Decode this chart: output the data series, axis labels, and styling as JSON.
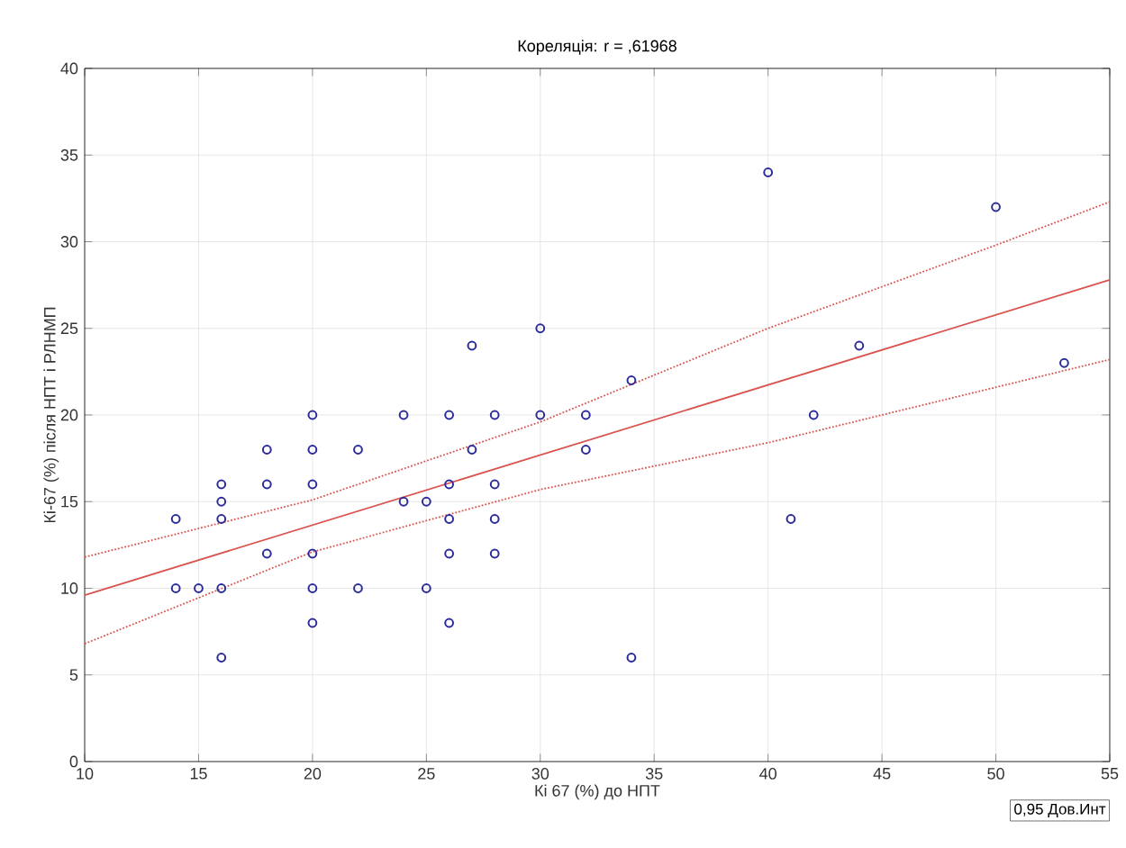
{
  "chart_data": {
    "type": "scatter",
    "title": "Кореляція: r =  ,61968",
    "xlabel": "Кі 67 (%) до НПТ",
    "ylabel": "Кі-67 (%) після НПТ і РЛНМП",
    "xlim": [
      10,
      55
    ],
    "ylim": [
      0,
      40
    ],
    "xticks": [
      10,
      15,
      20,
      25,
      30,
      35,
      40,
      45,
      50,
      55
    ],
    "yticks": [
      0,
      5,
      10,
      15,
      20,
      25,
      30,
      35,
      40
    ],
    "grid": true,
    "annotations": [
      "0,95 Дов.Инт"
    ],
    "series": [
      {
        "color": "#2b2b9a",
        "marker": "circle",
        "x": [
          20,
          24,
          26,
          28,
          30,
          32,
          27,
          30,
          18,
          20,
          22,
          27,
          32,
          16,
          18,
          20,
          26,
          28,
          16,
          24,
          25,
          14,
          16,
          26,
          28,
          18,
          20,
          26,
          28,
          14,
          15,
          16,
          20,
          22,
          25,
          20,
          26,
          16,
          40,
          50,
          34,
          42,
          44,
          53,
          41,
          34
        ],
        "values": [
          20,
          20,
          20,
          20,
          20,
          20,
          24,
          25,
          18,
          18,
          18,
          18,
          18,
          16,
          16,
          16,
          16,
          16,
          15,
          15,
          15,
          14,
          14,
          14,
          14,
          12,
          12,
          12,
          12,
          10,
          10,
          10,
          10,
          10,
          10,
          8,
          8,
          6,
          34,
          32,
          22,
          20,
          24,
          23,
          14,
          6
        ]
      },
      {
        "type": "line",
        "color": "#d9534f",
        "line_style": "solid",
        "marker": "none",
        "x": [
          10,
          55
        ],
        "values": [
          9.6,
          27.8
        ]
      },
      {
        "type": "line",
        "color": "#d9534f",
        "line_style": "dotted",
        "marker": "none",
        "x": [
          10,
          20,
          30,
          40,
          50,
          55
        ],
        "values": [
          11.8,
          15.1,
          19.6,
          25,
          29.8,
          32.3
        ]
      },
      {
        "type": "line",
        "color": "#d9534f",
        "line_style": "dotted",
        "marker": "none",
        "x": [
          10,
          20,
          30,
          40,
          50,
          55
        ],
        "values": [
          6.8,
          12.1,
          15.7,
          18.4,
          21.6,
          23.2
        ]
      }
    ]
  }
}
